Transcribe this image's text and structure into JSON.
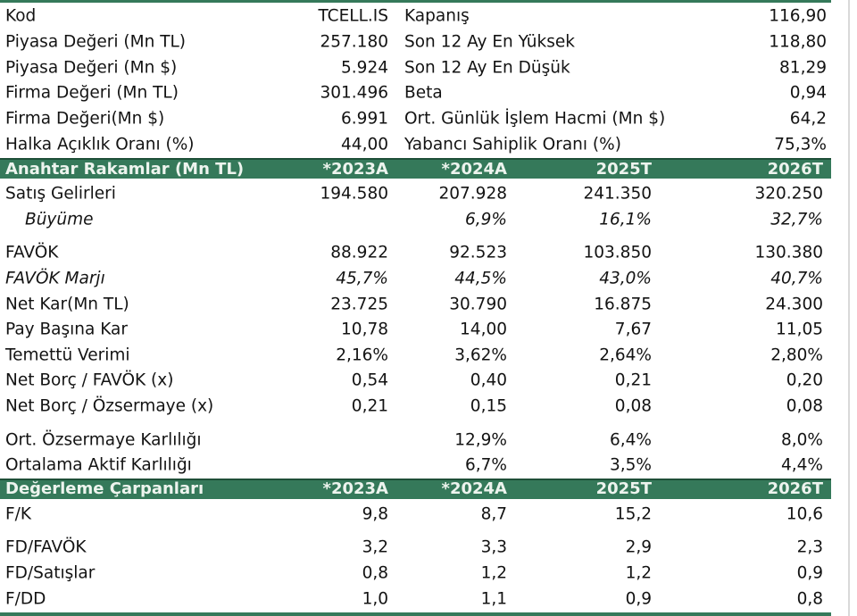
{
  "stock": {
    "info_left": [
      {
        "label": "Kod",
        "value": "TCELL.IS"
      },
      {
        "label": "Piyasa Değeri (Mn TL)",
        "value": "257.180"
      },
      {
        "label": "Piyasa Değeri (Mn $)",
        "value": "5.924"
      },
      {
        "label": "Firma Değeri (Mn TL)",
        "value": "301.496"
      },
      {
        "label": "Firma Değeri(Mn $)",
        "value": "6.991"
      },
      {
        "label": "Halka Açıklık Oranı (%)",
        "value": "44,00"
      }
    ],
    "info_right": [
      {
        "label": "Kapanış",
        "value": "116,90"
      },
      {
        "label": "Son 12 Ay En Yüksek",
        "value": "118,80"
      },
      {
        "label": "Son 12 Ay En Düşük",
        "value": "81,29"
      },
      {
        "label": "Beta",
        "value": "0,94"
      },
      {
        "label": "Ort. Günlük İşlem Hacmi (Mn $)",
        "value": "64,2"
      },
      {
        "label": "Yabancı Sahiplik Oranı (%)",
        "value": "75,3%"
      }
    ]
  },
  "sections": [
    {
      "title": "Anahtar Rakamlar (Mn TL)",
      "columns": [
        "*2023A",
        "*2024A",
        "2025T",
        "2026T"
      ],
      "rows": [
        {
          "label": "Satış Gelirleri",
          "values": [
            "194.580",
            "207.928",
            "241.350",
            "320.250"
          ]
        },
        {
          "label": "Büyüme",
          "italic": true,
          "indent": true,
          "values": [
            "",
            "6,9%",
            "16,1%",
            "32,7%"
          ]
        },
        {
          "label": "FAVÖK",
          "gap": true,
          "values": [
            "88.922",
            "92.523",
            "103.850",
            "130.380"
          ]
        },
        {
          "label": "FAVÖK Marjı",
          "italic": true,
          "values": [
            "45,7%",
            "44,5%",
            "43,0%",
            "40,7%"
          ]
        },
        {
          "label": "Net Kar(Mn TL)",
          "values": [
            "23.725",
            "30.790",
            "16.875",
            "24.300"
          ]
        },
        {
          "label": "Pay Başına Kar",
          "values": [
            "10,78",
            "14,00",
            "7,67",
            "11,05"
          ]
        },
        {
          "label": "Temettü Verimi",
          "values": [
            "2,16%",
            "3,62%",
            "2,64%",
            "2,80%"
          ]
        },
        {
          "label": "Net Borç / FAVÖK (x)",
          "values": [
            "0,54",
            "0,40",
            "0,21",
            "0,20"
          ]
        },
        {
          "label": "Net Borç / Özsermaye (x)",
          "values": [
            "0,21",
            "0,15",
            "0,08",
            "0,08"
          ]
        },
        {
          "label": "Ort. Özsermaye Karlılığı",
          "gap": true,
          "values": [
            "",
            "12,9%",
            "6,4%",
            "8,0%"
          ]
        },
        {
          "label": "Ortalama Aktif Karlılığı",
          "values": [
            "",
            "6,7%",
            "3,5%",
            "4,4%"
          ]
        }
      ]
    },
    {
      "title": "Değerleme Çarpanları",
      "columns": [
        "*2023A",
        "*2024A",
        "2025T",
        "2026T"
      ],
      "rows": [
        {
          "label": "F/K",
          "values": [
            "9,8",
            "8,7",
            "15,2",
            "10,6"
          ]
        },
        {
          "label": "FD/FAVÖK",
          "gap": true,
          "values": [
            "3,2",
            "3,3",
            "2,9",
            "2,3"
          ]
        },
        {
          "label": "FD/Satışlar",
          "values": [
            "0,8",
            "1,2",
            "1,2",
            "0,9"
          ]
        },
        {
          "label": "F/DD",
          "values": [
            "1,0",
            "1,1",
            "0,9",
            "0,8"
          ]
        }
      ]
    }
  ],
  "colors": {
    "header_green": "#35795A",
    "header_green_dark": "#1E4F38",
    "header_text": "#EDF4EE",
    "body_text": "#131313",
    "edge_line": "#d9d9d9"
  }
}
